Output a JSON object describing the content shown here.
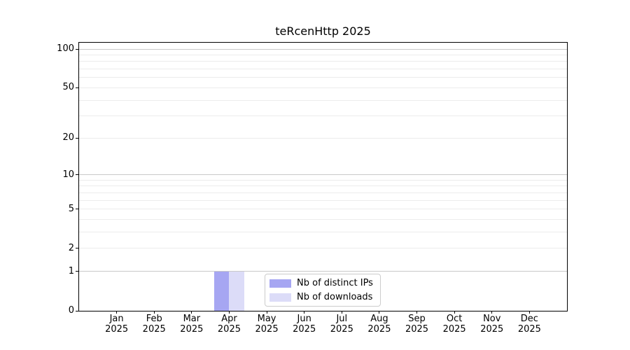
{
  "figure": {
    "background": "#ffffff"
  },
  "chart_data": {
    "type": "bar",
    "title": "teRcenHttp 2025",
    "categories": [
      "Jan",
      "Feb",
      "Mar",
      "Apr",
      "May",
      "Jun",
      "Jul",
      "Aug",
      "Sep",
      "Oct",
      "Nov",
      "Dec"
    ],
    "x_year_label": "2025",
    "series": [
      {
        "name": "Nb of distinct IPs",
        "color": "#a6a6f2",
        "values": [
          0,
          0,
          0,
          1,
          0,
          0,
          0,
          0,
          0,
          0,
          0,
          0
        ]
      },
      {
        "name": "Nb of downloads",
        "color": "#dcdcf8",
        "values": [
          0,
          0,
          0,
          1,
          0,
          0,
          0,
          0,
          0,
          0,
          0,
          0
        ]
      }
    ],
    "xlabel": "",
    "ylabel": "",
    "ylim": [
      0,
      112
    ],
    "yscale": "log(1+y)",
    "y_axis": {
      "tick_values": [
        0,
        1,
        2,
        5,
        10,
        20,
        50,
        100
      ],
      "tick_labels": [
        "0",
        "1",
        "2",
        "5",
        "10",
        "20",
        "50",
        "100"
      ],
      "major_gridlines": [
        1,
        10,
        100
      ],
      "minor_gridlines": [
        2,
        3,
        4,
        5,
        6,
        7,
        8,
        9,
        20,
        30,
        40,
        50,
        60,
        70,
        80,
        90
      ]
    },
    "grid": true,
    "legend_position": "lower center"
  },
  "colors": {
    "major_grid": "#c9c9c9",
    "minor_grid": "#ececec",
    "spine": "#000000",
    "legend_border": "#cccccc",
    "text": "#000000"
  }
}
